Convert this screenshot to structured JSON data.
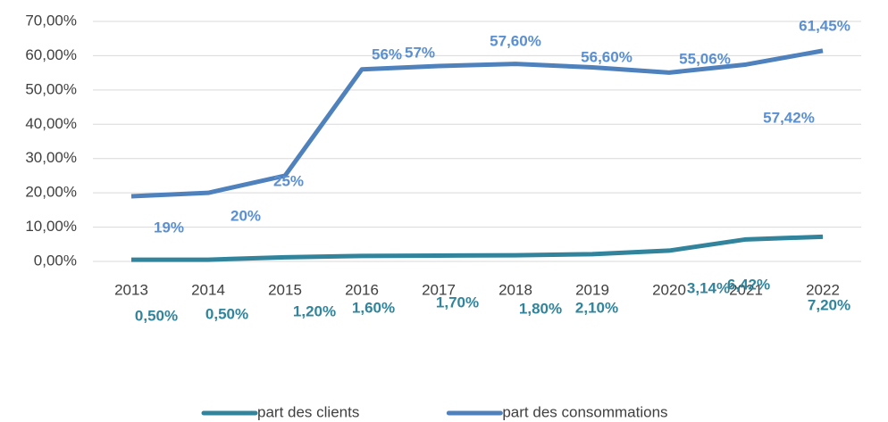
{
  "chart_data": {
    "type": "line",
    "categories": [
      "2013",
      "2014",
      "2015",
      "2016",
      "2017",
      "2018",
      "2019",
      "2020",
      "2021",
      "2022"
    ],
    "series": [
      {
        "name": "part des clients",
        "color": "#31849b",
        "values": [
          0.5,
          0.5,
          1.2,
          1.6,
          1.7,
          1.8,
          2.1,
          3.14,
          6.42,
          7.2
        ],
        "value_labels": [
          "0,50%",
          "0,50%",
          "1,20%",
          "1,60%",
          "1,70%",
          "1,80%",
          "2,10%",
          "3,14%",
          "6,42%",
          "7,20%"
        ]
      },
      {
        "name": "part des consommations",
        "color": "#4f81bd",
        "values": [
          19,
          20,
          25,
          56,
          57,
          57.6,
          56.6,
          55.06,
          57.42,
          61.45
        ],
        "value_labels": [
          "19%",
          "20%",
          "25%",
          "56%",
          "57%",
          "57,60%",
          "56,60%",
          "55,06%",
          "57,42%",
          "61,45%"
        ]
      }
    ],
    "ylim": [
      0,
      70
    ],
    "yticks": [
      {
        "value": 0,
        "label": "0,00%"
      },
      {
        "value": 10,
        "label": "10,00%"
      },
      {
        "value": 20,
        "label": "20,00%"
      },
      {
        "value": 30,
        "label": "30,00%"
      },
      {
        "value": 40,
        "label": "40,00%"
      },
      {
        "value": 50,
        "label": "50,00%"
      },
      {
        "value": 60,
        "label": "60,00%"
      },
      {
        "value": 70,
        "label": "70,00%"
      }
    ],
    "grid": true,
    "legend": "bottom"
  }
}
